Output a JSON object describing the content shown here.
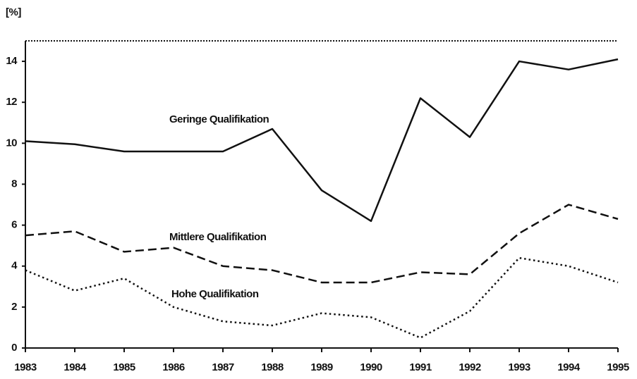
{
  "chart_data": {
    "type": "line",
    "y_label": "[%]",
    "x": [
      "1983",
      "1984",
      "1985",
      "1986",
      "1987",
      "1988",
      "1989",
      "1990",
      "1991",
      "1992",
      "1993",
      "1994",
      "1995"
    ],
    "series": [
      {
        "name": "Geringe Qualifikation",
        "color": "#111111",
        "style": "solid",
        "values": [
          10.1,
          9.95,
          9.6,
          9.6,
          9.6,
          10.7,
          7.7,
          6.2,
          12.2,
          10.3,
          14.0,
          13.6,
          14.1
        ]
      },
      {
        "name": "Mittlere Qualifikation",
        "color": "#111111",
        "style": "dashed",
        "values": [
          5.5,
          5.7,
          4.7,
          4.9,
          4.0,
          3.8,
          3.2,
          3.2,
          3.7,
          3.6,
          5.6,
          7.0,
          6.3
        ]
      },
      {
        "name": "Hohe Qualifikation",
        "color": "#111111",
        "style": "dotted",
        "values": [
          3.8,
          2.8,
          3.4,
          2.0,
          1.3,
          1.1,
          1.7,
          1.5,
          0.5,
          1.8,
          4.4,
          4.0,
          3.2
        ]
      }
    ],
    "ylim": [
      0,
      15
    ],
    "yticks": [
      0,
      2,
      4,
      6,
      8,
      10,
      12,
      14
    ],
    "grid": false
  }
}
